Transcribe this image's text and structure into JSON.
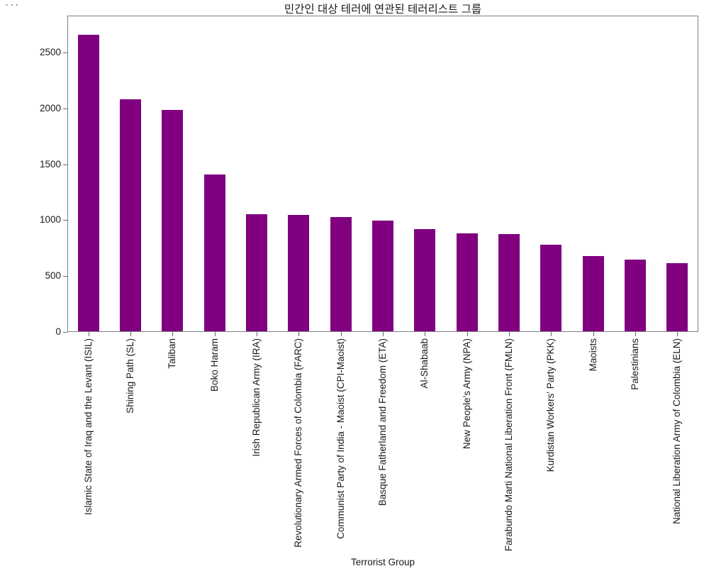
{
  "page": {
    "overflow_indicator": "..."
  },
  "chart_data": {
    "type": "bar",
    "title": "민간인 대상 테러에 연관된 테러리스트 그룹",
    "xlabel": "Terrorist Group",
    "ylabel": "",
    "categories": [
      "Islamic State of Iraq and the Levant (ISIL)",
      "Shining Path (SL)",
      "Taliban",
      "Boko Haram",
      "Irish Republican Army (IRA)",
      "Revolutionary Armed Forces of Colombia (FARC)",
      "Communist Party of India - Maoist (CPI-Maoist)",
      "Basque Fatherland and Freedom (ETA)",
      "Al-Shabaab",
      "New People's Army (NPA)",
      "Farabundo Marti National Liberation Front (FMLN)",
      "Kurdistan Workers' Party (PKK)",
      "Maoists",
      "Palestinians",
      "National Liberation Army of Colombia (ELN)"
    ],
    "values": [
      2657,
      2080,
      1983,
      1407,
      1053,
      1048,
      1031,
      996,
      921,
      884,
      877,
      780,
      679,
      647,
      617
    ],
    "yticks": [
      0,
      500,
      1000,
      1500,
      2000,
      2500
    ],
    "ylim": [
      0,
      2830
    ],
    "x_tick_rotation": 90,
    "grid": false,
    "legend": "none",
    "bar_color": "#800080",
    "axis_color": "#666666",
    "text_color": "#1a1a1a",
    "background_color": "#ffffff"
  }
}
